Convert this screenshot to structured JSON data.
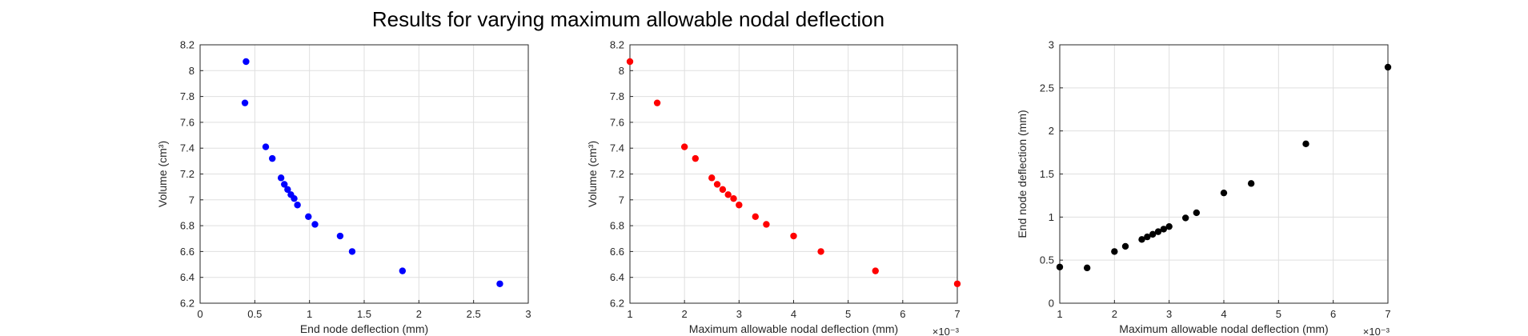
{
  "figure": {
    "title": "Results for varying maximum allowable nodal deflection"
  },
  "chart_data": [
    {
      "type": "scatter",
      "xlabel": "End node deflection (mm)",
      "ylabel": "Volume (cm³)",
      "xlim": [
        0,
        3
      ],
      "ylim": [
        6.2,
        8.2
      ],
      "xticks": [
        "0",
        "0.5",
        "1",
        "1.5",
        "2",
        "2.5",
        "3"
      ],
      "yticks": [
        "6.2",
        "6.4",
        "6.6",
        "6.8",
        "7",
        "7.2",
        "7.4",
        "7.6",
        "7.8",
        "8",
        "8.2"
      ],
      "x_exponent": "",
      "grid": true,
      "color": "#0000ff",
      "points": [
        [
          0.42,
          8.07
        ],
        [
          0.41,
          7.75
        ],
        [
          0.6,
          7.41
        ],
        [
          0.66,
          7.32
        ],
        [
          0.74,
          7.17
        ],
        [
          0.77,
          7.12
        ],
        [
          0.8,
          7.08
        ],
        [
          0.83,
          7.04
        ],
        [
          0.86,
          7.01
        ],
        [
          0.89,
          6.96
        ],
        [
          0.99,
          6.87
        ],
        [
          1.05,
          6.81
        ],
        [
          1.28,
          6.72
        ],
        [
          1.39,
          6.6
        ],
        [
          1.85,
          6.45
        ],
        [
          2.74,
          6.35
        ]
      ]
    },
    {
      "type": "scatter",
      "xlabel": "Maximum allowable nodal deflection (mm)",
      "ylabel": "Volume (cm³)",
      "xlim": [
        1,
        7
      ],
      "ylim": [
        6.2,
        8.2
      ],
      "xticks": [
        "1",
        "2",
        "3",
        "4",
        "5",
        "6",
        "7"
      ],
      "yticks": [
        "6.2",
        "6.4",
        "6.6",
        "6.8",
        "7",
        "7.2",
        "7.4",
        "7.6",
        "7.8",
        "8",
        "8.2"
      ],
      "x_exponent": "×10⁻³",
      "grid": true,
      "color": "#ff0000",
      "points": [
        [
          1.0,
          8.07
        ],
        [
          1.5,
          7.75
        ],
        [
          2.0,
          7.41
        ],
        [
          2.2,
          7.32
        ],
        [
          2.5,
          7.17
        ],
        [
          2.6,
          7.12
        ],
        [
          2.7,
          7.08
        ],
        [
          2.8,
          7.04
        ],
        [
          2.9,
          7.01
        ],
        [
          3.0,
          6.96
        ],
        [
          3.3,
          6.87
        ],
        [
          3.5,
          6.81
        ],
        [
          4.0,
          6.72
        ],
        [
          4.5,
          6.6
        ],
        [
          5.5,
          6.45
        ],
        [
          7.0,
          6.35
        ]
      ]
    },
    {
      "type": "scatter",
      "xlabel": "Maximum allowable nodal deflection (mm)",
      "ylabel": "End node deflection (mm)",
      "xlim": [
        1,
        7
      ],
      "ylim": [
        0,
        3
      ],
      "xticks": [
        "1",
        "2",
        "3",
        "4",
        "5",
        "6",
        "7"
      ],
      "yticks": [
        "0",
        "0.5",
        "1",
        "1.5",
        "2",
        "2.5",
        "3"
      ],
      "x_exponent": "×10⁻³",
      "grid": true,
      "color": "#000000",
      "points": [
        [
          1.0,
          0.42
        ],
        [
          1.5,
          0.41
        ],
        [
          2.0,
          0.6
        ],
        [
          2.2,
          0.66
        ],
        [
          2.5,
          0.74
        ],
        [
          2.6,
          0.77
        ],
        [
          2.7,
          0.8
        ],
        [
          2.8,
          0.83
        ],
        [
          2.9,
          0.86
        ],
        [
          3.0,
          0.89
        ],
        [
          3.3,
          0.99
        ],
        [
          3.5,
          1.05
        ],
        [
          4.0,
          1.28
        ],
        [
          4.5,
          1.39
        ],
        [
          5.5,
          1.85
        ],
        [
          7.0,
          2.74
        ]
      ]
    }
  ]
}
